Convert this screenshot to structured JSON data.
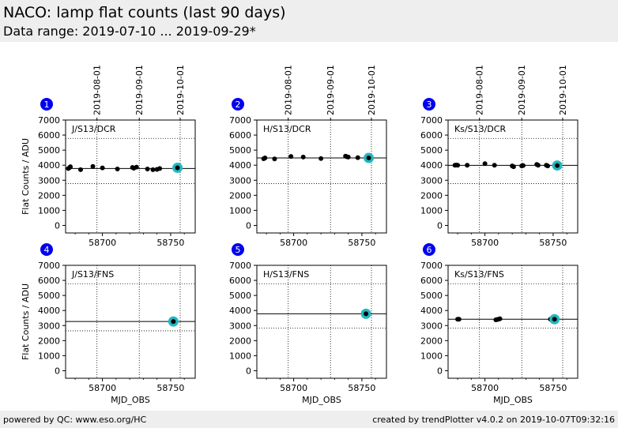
{
  "header": {
    "title": "NACO: lamp flat counts (last 90 days)",
    "subtitle": "Data range: 2019-07-10 ... 2019-09-29*"
  },
  "footer": {
    "left": "powered by QC: www.eso.org/HC",
    "right": "created by trendPlotter v4.0.2 on 2019-10-07T09:32:16"
  },
  "colors": {
    "marker": "#000000",
    "highlight": "#22b8c0",
    "badge": "#0000ee",
    "badge_text": "#ffffff"
  },
  "chart_data": [
    {
      "type": "scatter",
      "number": "1",
      "label": "J/S13/DCR",
      "xlim": [
        58673,
        58768
      ],
      "ylim": [
        -500,
        7000
      ],
      "xticks": [
        58700,
        58750
      ],
      "yticks": [
        0,
        1000,
        2000,
        3000,
        4000,
        5000,
        6000,
        7000
      ],
      "ylabel": "Flat Counts / ADU",
      "xlabel": "",
      "date_lines": [
        58696,
        58727,
        58757
      ],
      "date_labels": [
        "2019-08-01",
        "2019-09-01",
        "2019-10-01"
      ],
      "reference": 3780,
      "thresholds": [
        2780,
        5780
      ],
      "points": {
        "x": [
          58675,
          58676,
          58676.5,
          58684,
          58693,
          58700,
          58711,
          58722,
          58723,
          58725,
          58733,
          58737,
          58740,
          58742
        ],
        "y": [
          3780,
          3850,
          3900,
          3700,
          3920,
          3820,
          3750,
          3850,
          3800,
          3870,
          3750,
          3700,
          3720,
          3780
        ]
      },
      "latest": {
        "x": 58755,
        "y": 3830
      }
    },
    {
      "type": "scatter",
      "number": "2",
      "label": "H/S13/DCR",
      "xlim": [
        58673,
        58768
      ],
      "ylim": [
        -500,
        7000
      ],
      "xticks": [
        58700,
        58750
      ],
      "yticks": [
        0,
        1000,
        2000,
        3000,
        4000,
        5000,
        6000,
        7000
      ],
      "ylabel": "",
      "xlabel": "",
      "date_lines": [
        58696,
        58727,
        58757
      ],
      "date_labels": [
        "2019-08-01",
        "2019-09-01",
        "2019-10-01"
      ],
      "reference": 4480,
      "thresholds": [
        2780
      ],
      "points": {
        "x": [
          58678,
          58679,
          58686,
          58698,
          58707,
          58720,
          58738,
          58739,
          58740,
          58747
        ],
        "y": [
          4430,
          4480,
          4420,
          4580,
          4540,
          4440,
          4600,
          4560,
          4540,
          4500
        ]
      },
      "latest": {
        "x": 58755,
        "y": 4480
      }
    },
    {
      "type": "scatter",
      "number": "3",
      "label": "Ks/S13/DCR",
      "xlim": [
        58673,
        58768
      ],
      "ylim": [
        -500,
        7000
      ],
      "xticks": [
        58700,
        58750
      ],
      "yticks": [
        0,
        1000,
        2000,
        3000,
        4000,
        5000,
        6000,
        7000
      ],
      "ylabel": "",
      "xlabel": "",
      "date_lines": [
        58696,
        58727,
        58757
      ],
      "date_labels": [
        "2019-08-01",
        "2019-09-01",
        "2019-10-01"
      ],
      "reference": 3990,
      "thresholds": [
        2780,
        5780
      ],
      "points": {
        "x": [
          58678,
          58679,
          58680,
          58687,
          58700,
          58707,
          58720,
          58721,
          58727,
          58728,
          58738,
          58739,
          58745,
          58746
        ],
        "y": [
          4000,
          4010,
          4000,
          4000,
          4100,
          4000,
          3950,
          3900,
          3950,
          3980,
          4050,
          4000,
          4000,
          3950
        ]
      },
      "latest": {
        "x": 58753,
        "y": 3980
      }
    },
    {
      "type": "scatter",
      "number": "4",
      "label": "J/S13/FNS",
      "xlim": [
        58673,
        58768
      ],
      "ylim": [
        -500,
        7000
      ],
      "xticks": [
        58700,
        58750
      ],
      "yticks": [
        0,
        1000,
        2000,
        3000,
        4000,
        5000,
        6000,
        7000
      ],
      "ylabel": "Flat Counts / ADU",
      "xlabel": "MJD_OBS",
      "date_lines": [
        58696,
        58727,
        58757
      ],
      "date_labels": [],
      "reference": 3270,
      "thresholds": [
        2650,
        5780
      ],
      "points": {
        "x": [],
        "y": []
      },
      "latest": {
        "x": 58752,
        "y": 3270
      }
    },
    {
      "type": "scatter",
      "number": "5",
      "label": "H/S13/FNS",
      "xlim": [
        58673,
        58768
      ],
      "ylim": [
        -500,
        7000
      ],
      "xticks": [
        58700,
        58750
      ],
      "yticks": [
        0,
        1000,
        2000,
        3000,
        4000,
        5000,
        6000,
        7000
      ],
      "ylabel": "",
      "xlabel": "MJD_OBS",
      "date_lines": [
        58696,
        58727,
        58757
      ],
      "date_labels": [],
      "reference": 3780,
      "thresholds": [
        2830,
        5780
      ],
      "points": {
        "x": [],
        "y": []
      },
      "latest": {
        "x": 58753,
        "y": 3780
      }
    },
    {
      "type": "scatter",
      "number": "6",
      "label": "Ks/S13/FNS",
      "xlim": [
        58673,
        58768
      ],
      "ylim": [
        -500,
        7000
      ],
      "xticks": [
        58700,
        58750
      ],
      "yticks": [
        0,
        1000,
        2000,
        3000,
        4000,
        5000,
        6000,
        7000
      ],
      "ylabel": "",
      "xlabel": "MJD_OBS",
      "date_lines": [
        58696,
        58727,
        58757
      ],
      "date_labels": [],
      "reference": 3420,
      "thresholds": [
        2830,
        5780
      ],
      "points": {
        "x": [
          58680,
          58681,
          58708,
          58709,
          58710,
          58711,
          58748,
          58749
        ],
        "y": [
          3420,
          3420,
          3380,
          3400,
          3420,
          3450,
          3420,
          3420
        ]
      },
      "latest": {
        "x": 58751,
        "y": 3420
      }
    }
  ]
}
